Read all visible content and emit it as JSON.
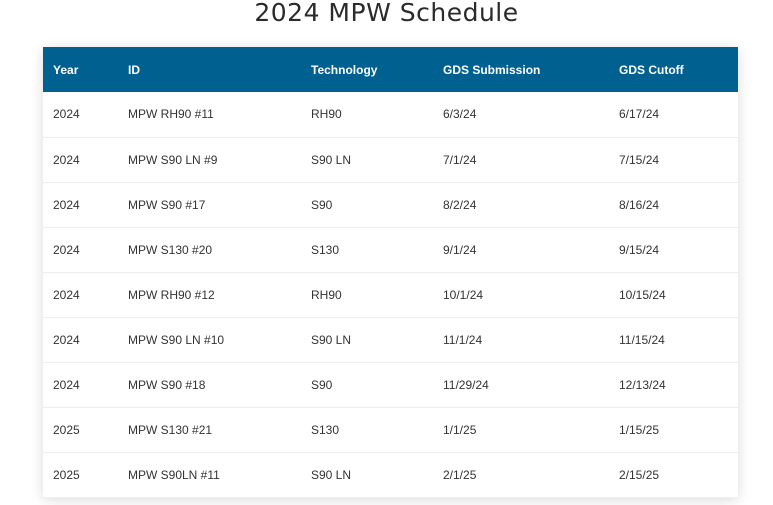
{
  "page": {
    "title": "2024 MPW Schedule"
  },
  "table": {
    "headers": [
      "Year",
      "ID",
      "Technology",
      "GDS Submission",
      "GDS Cutoff"
    ],
    "rows": [
      [
        "2024",
        "MPW RH90 #11",
        "RH90",
        "6/3/24",
        "6/17/24"
      ],
      [
        "2024",
        "MPW S90 LN #9",
        "S90 LN",
        "7/1/24",
        "7/15/24"
      ],
      [
        "2024",
        "MPW S90 #17",
        "S90",
        "8/2/24",
        "8/16/24"
      ],
      [
        "2024",
        "MPW S130 #20",
        "S130",
        "9/1/24",
        "9/15/24"
      ],
      [
        "2024",
        "MPW RH90 #12",
        "RH90",
        "10/1/24",
        "10/15/24"
      ],
      [
        "2024",
        "MPW S90 LN #10",
        "S90 LN",
        "11/1/24",
        "11/15/24"
      ],
      [
        "2024",
        "MPW S90 #18",
        "S90",
        "11/29/24",
        "12/13/24"
      ],
      [
        "2025",
        "MPW S130 #21",
        "S130",
        "1/1/25",
        "1/15/25"
      ],
      [
        "2025",
        "MPW S90LN #11",
        "S90 LN",
        "2/1/25",
        "2/15/25"
      ]
    ]
  },
  "colors": {
    "header_bg": "#00608f",
    "header_text": "#ffffff",
    "row_divider": "#eeeeee"
  }
}
